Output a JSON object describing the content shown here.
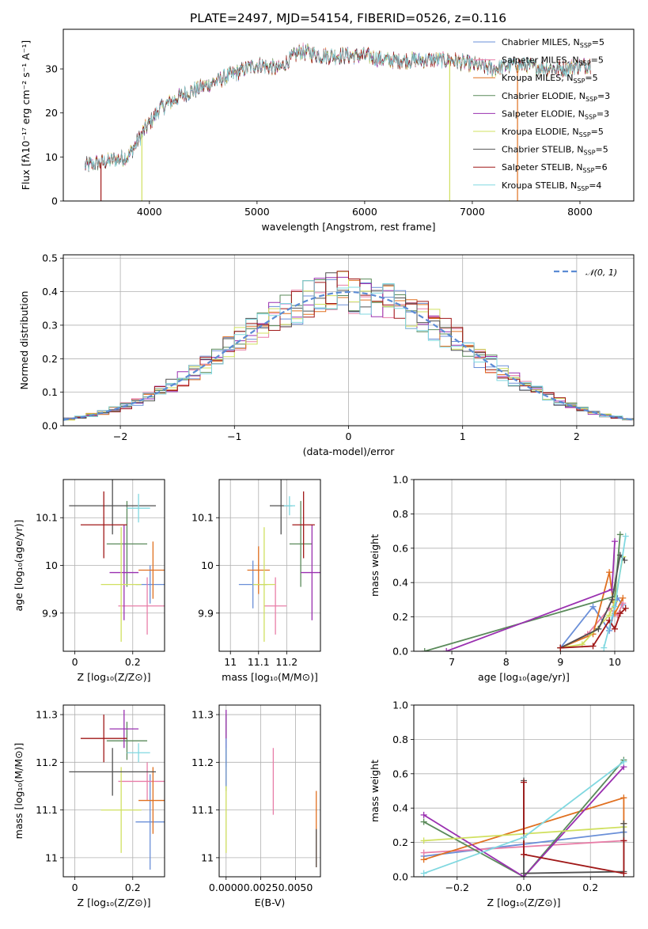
{
  "figure": {
    "title": "PLATE=2497, MJD=54154, FIBERID=0526, z=0.116"
  },
  "colors": {
    "Chabrier MILES": "#6a8fd8",
    "Salpeter MILES": "#e87ea8",
    "Kroupa MILES": "#e07020",
    "Chabrier ELODIE": "#5a8a5a",
    "Salpeter ELODIE": "#9a30b0",
    "Kroupa ELODIE": "#d0e060",
    "Chabrier STELIB": "#505050",
    "Salpeter STELIB": "#a01818",
    "Kroupa STELIB": "#80d8e0"
  },
  "chart_data": [
    {
      "id": "spectrum",
      "type": "line",
      "xlabel": "wavelength [Angstrom, rest frame]",
      "ylabel": "Flux [fλ10⁻¹⁷ erg cm⁻² s⁻¹ A⁻¹]",
      "xlim": [
        3200,
        8500
      ],
      "ylim": [
        0,
        39
      ],
      "xticks": [
        4000,
        5000,
        6000,
        7000,
        8000
      ],
      "yticks": [
        0,
        10,
        20,
        30
      ],
      "legend_position": "top-right",
      "legend": [
        {
          "label": "Chabrier MILES, N",
          "sub": "SSP",
          "suffix": "=5",
          "color": "#6a8fd8"
        },
        {
          "label": "Salpeter MILES, N",
          "sub": "SSP",
          "suffix": "=5",
          "color": "#e87ea8"
        },
        {
          "label": "Kroupa MILES, N",
          "sub": "SSP",
          "suffix": "=5",
          "color": "#e07020"
        },
        {
          "label": "Chabrier ELODIE, N",
          "sub": "SSP",
          "suffix": "=3",
          "color": "#5a8a5a"
        },
        {
          "label": "Salpeter ELODIE, N",
          "sub": "SSP",
          "suffix": "=3",
          "color": "#9a30b0"
        },
        {
          "label": "Kroupa ELODIE, N",
          "sub": "SSP",
          "suffix": "=5",
          "color": "#d0e060"
        },
        {
          "label": "Chabrier STELIB, N",
          "sub": "SSP",
          "suffix": "=5",
          "color": "#505050"
        },
        {
          "label": "Salpeter STELIB, N",
          "sub": "SSP",
          "suffix": "=6",
          "color": "#a01818"
        },
        {
          "label": "Kroupa STELIB, N",
          "sub": "SSP",
          "suffix": "=4",
          "color": "#80d8e0"
        }
      ],
      "continuum": {
        "x": [
          3400,
          3600,
          3800,
          3950,
          4100,
          4300,
          4500,
          4800,
          5000,
          5200,
          5400,
          5600,
          5800,
          6000,
          6200,
          6500,
          6800,
          7000,
          7200,
          7400,
          7800,
          8100
        ],
        "y": [
          8,
          9,
          10,
          16,
          21,
          24,
          26,
          29,
          31,
          30,
          34,
          33,
          33,
          33,
          32,
          32,
          32,
          31,
          30,
          31,
          30,
          31
        ]
      },
      "drops": [
        {
          "x": 3550,
          "y_to": 0,
          "color": "#a01818"
        },
        {
          "x": 3930,
          "y_to": 0,
          "color": "#d0e060"
        },
        {
          "x": 6790,
          "y_to": 0,
          "color": "#d0e060"
        },
        {
          "x": 7420,
          "y_to": 0,
          "color": "#e07020"
        }
      ]
    },
    {
      "id": "residual-hist",
      "type": "histogram",
      "xlabel": "(data-model)/error",
      "ylabel": "Normed distribution",
      "xlim": [
        -2.5,
        2.5
      ],
      "ylim": [
        0,
        0.51
      ],
      "xticks": [
        -2,
        -1,
        0,
        1,
        2
      ],
      "yticks": [
        0.0,
        0.1,
        0.2,
        0.3,
        0.4,
        0.5
      ],
      "bin_width": 0.1,
      "legend_position": "top-right",
      "gaussian": {
        "label": "𝒩(0, 1)",
        "mu": 0,
        "sigma": 1,
        "color": "#5b8bd4"
      }
    },
    {
      "id": "age-vs-Z",
      "type": "scatter",
      "xlabel": "Z [log₁₀(Z/Z⊙)]",
      "ylabel": "age  [log₁₀(age/yr)]",
      "xlim": [
        -0.04,
        0.31
      ],
      "ylim": [
        9.82,
        10.18
      ],
      "xticks": [
        0.0,
        0.2
      ],
      "yticks": [
        9.9,
        10.0,
        10.1
      ],
      "points": [
        {
          "series": "Chabrier MILES",
          "x": 0.26,
          "xerr": 0.05,
          "y": 9.96,
          "yerr": 0.04
        },
        {
          "series": "Salpeter MILES",
          "x": 0.25,
          "xerr": 0.1,
          "y": 9.915,
          "yerr": 0.06
        },
        {
          "series": "Kroupa MILES",
          "x": 0.27,
          "xerr": 0.05,
          "y": 9.99,
          "yerr": 0.06
        },
        {
          "series": "Chabrier ELODIE",
          "x": 0.18,
          "xerr": 0.07,
          "y": 10.045,
          "yerr": 0.09
        },
        {
          "series": "Salpeter ELODIE",
          "x": 0.17,
          "xerr": 0.05,
          "y": 9.985,
          "yerr": 0.1
        },
        {
          "series": "Kroupa ELODIE",
          "x": 0.16,
          "xerr": 0.07,
          "y": 9.96,
          "yerr": 0.12
        },
        {
          "series": "Chabrier STELIB",
          "x": 0.13,
          "xerr": 0.15,
          "y": 10.125,
          "yerr": 0.06
        },
        {
          "series": "Salpeter STELIB",
          "x": 0.1,
          "xerr": 0.08,
          "y": 10.085,
          "yerr": 0.07
        },
        {
          "series": "Kroupa STELIB",
          "x": 0.22,
          "xerr": 0.04,
          "y": 10.12,
          "yerr": 0.03
        }
      ]
    },
    {
      "id": "age-vs-mass",
      "type": "scatter",
      "xlabel": "mass [log₁₀(M/M⊙)]",
      "ylabel": "",
      "xlim": [
        10.96,
        11.32
      ],
      "ylim": [
        9.82,
        10.18
      ],
      "xticks": [
        11.0,
        11.1,
        11.2
      ],
      "yticks": [
        9.9,
        10.0,
        10.1
      ],
      "points": [
        {
          "series": "Chabrier MILES",
          "x": 11.08,
          "xerr": 0.05,
          "y": 9.96,
          "yerr": 0.05
        },
        {
          "series": "Salpeter MILES",
          "x": 11.16,
          "xerr": 0.04,
          "y": 9.915,
          "yerr": 0.06
        },
        {
          "series": "Kroupa MILES",
          "x": 11.1,
          "xerr": 0.04,
          "y": 9.99,
          "yerr": 0.05
        },
        {
          "series": "Chabrier ELODIE",
          "x": 11.25,
          "xerr": 0.04,
          "y": 10.045,
          "yerr": 0.09
        },
        {
          "series": "Salpeter ELODIE",
          "x": 11.29,
          "xerr": 0.04,
          "y": 9.985,
          "yerr": 0.1
        },
        {
          "series": "Kroupa ELODIE",
          "x": 11.12,
          "xerr": 0.04,
          "y": 9.96,
          "yerr": 0.12
        },
        {
          "series": "Chabrier STELIB",
          "x": 11.18,
          "xerr": 0.04,
          "y": 10.125,
          "yerr": 0.06
        },
        {
          "series": "Salpeter STELIB",
          "x": 11.26,
          "xerr": 0.04,
          "y": 10.085,
          "yerr": 0.07
        },
        {
          "series": "Kroupa STELIB",
          "x": 11.21,
          "xerr": 0.02,
          "y": 10.125,
          "yerr": 0.02
        }
      ]
    },
    {
      "id": "weight-vs-age",
      "type": "line",
      "xlabel": "age  [log₁₀(age/yr)]",
      "ylabel": "mass weight",
      "xlim": [
        6.3,
        10.35
      ],
      "ylim": [
        0,
        1
      ],
      "xticks": [
        7,
        8,
        9,
        10
      ],
      "yticks": [
        0.0,
        0.2,
        0.4,
        0.6,
        0.8,
        1.0
      ],
      "series": [
        {
          "name": "Chabrier MILES",
          "x": [
            9.0,
            9.6,
            9.9,
            10.05,
            10.15
          ],
          "y": [
            0.02,
            0.26,
            0.12,
            0.31,
            0.27
          ]
        },
        {
          "name": "Salpeter MILES",
          "x": [
            9.0,
            9.5,
            9.9,
            10.05,
            10.15
          ],
          "y": [
            0.02,
            0.1,
            0.25,
            0.21,
            0.28
          ]
        },
        {
          "name": "Kroupa MILES",
          "x": [
            9.0,
            9.6,
            9.9,
            10.0,
            10.15
          ],
          "y": [
            0.02,
            0.1,
            0.46,
            0.22,
            0.31
          ]
        },
        {
          "name": "Chabrier ELODIE",
          "x": [
            6.5,
            10.0,
            10.1
          ],
          "y": [
            0.0,
            0.32,
            0.68
          ]
        },
        {
          "name": "Salpeter ELODIE",
          "x": [
            6.9,
            9.95,
            10.0
          ],
          "y": [
            0.0,
            0.36,
            0.64
          ]
        },
        {
          "name": "Kroupa ELODIE",
          "x": [
            9.0,
            9.4,
            9.9,
            10.0,
            10.15
          ],
          "y": [
            0.02,
            0.04,
            0.21,
            0.29,
            0.55
          ]
        },
        {
          "name": "Chabrier STELIB",
          "x": [
            9.0,
            9.7,
            9.95,
            10.1,
            10.18
          ],
          "y": [
            0.02,
            0.13,
            0.3,
            0.56,
            0.53
          ]
        },
        {
          "name": "Salpeter STELIB",
          "x": [
            9.0,
            9.6,
            9.9,
            10.0,
            10.1,
            10.2
          ],
          "y": [
            0.02,
            0.03,
            0.18,
            0.13,
            0.22,
            0.25
          ]
        },
        {
          "name": "Kroupa STELIB",
          "x": [
            9.8,
            10.0,
            10.2
          ],
          "y": [
            0.02,
            0.26,
            0.67
          ]
        }
      ]
    },
    {
      "id": "mass-vs-Z",
      "type": "scatter",
      "xlabel": "Z [log₁₀(Z/Z⊙)]",
      "ylabel": "mass [log₁₀(M/M⊙)]",
      "xlim": [
        -0.04,
        0.31
      ],
      "ylim": [
        10.96,
        11.32
      ],
      "xticks": [
        0.0,
        0.2
      ],
      "yticks": [
        11.0,
        11.1,
        11.2,
        11.3
      ],
      "points": [
        {
          "series": "Chabrier MILES",
          "x": 0.26,
          "xerr": 0.05,
          "y": 11.075,
          "yerr": 0.1
        },
        {
          "series": "Salpeter MILES",
          "x": 0.25,
          "xerr": 0.1,
          "y": 11.16,
          "yerr": 0.04
        },
        {
          "series": "Kroupa MILES",
          "x": 0.27,
          "xerr": 0.05,
          "y": 11.12,
          "yerr": 0.07
        },
        {
          "series": "Chabrier ELODIE",
          "x": 0.18,
          "xerr": 0.07,
          "y": 11.245,
          "yerr": 0.04
        },
        {
          "series": "Salpeter ELODIE",
          "x": 0.17,
          "xerr": 0.05,
          "y": 11.27,
          "yerr": 0.04
        },
        {
          "series": "Kroupa ELODIE",
          "x": 0.16,
          "xerr": 0.07,
          "y": 11.1,
          "yerr": 0.09
        },
        {
          "series": "Chabrier STELIB",
          "x": 0.13,
          "xerr": 0.15,
          "y": 11.18,
          "yerr": 0.05
        },
        {
          "series": "Salpeter STELIB",
          "x": 0.1,
          "xerr": 0.08,
          "y": 11.25,
          "yerr": 0.05
        },
        {
          "series": "Kroupa STELIB",
          "x": 0.22,
          "xerr": 0.04,
          "y": 11.22,
          "yerr": 0.02
        }
      ]
    },
    {
      "id": "mass-vs-ebv",
      "type": "scatter",
      "xlabel": "E(B-V)",
      "ylabel": "",
      "xlim": [
        -0.0005,
        0.0068
      ],
      "ylim": [
        10.96,
        11.32
      ],
      "xticks": [
        0.0,
        0.0025,
        0.005
      ],
      "xticklabels": [
        "0.0000",
        "0.0025",
        "0.0050"
      ],
      "yticks": [
        11.0,
        11.1,
        11.2,
        11.3
      ],
      "points": [
        {
          "series": "Chabrier ELODIE",
          "x": 0.0,
          "y": 11.22,
          "yerr": 0.08
        },
        {
          "series": "Salpeter ELODIE",
          "x": 0.0,
          "y": 11.27,
          "yerr": 0.04
        },
        {
          "series": "Kroupa ELODIE",
          "x": 0.0,
          "y": 11.1,
          "yerr": 0.09
        },
        {
          "series": "Chabrier MILES",
          "x": 0.0,
          "y": 11.2,
          "yerr": 0.05
        },
        {
          "series": "Salpeter MILES",
          "x": 0.0034,
          "y": 11.16,
          "yerr": 0.07
        },
        {
          "series": "Kroupa MILES",
          "x": 0.0065,
          "y": 11.06,
          "yerr": 0.08
        },
        {
          "series": "Chabrier STELIB",
          "x": 0.0065,
          "y": 11.02,
          "yerr": 0.04
        }
      ]
    },
    {
      "id": "weight-vs-Z",
      "type": "line",
      "xlabel": "Z [log₁₀(Z/Z⊙)]",
      "ylabel": "mass weight",
      "xlim": [
        -0.33,
        0.33
      ],
      "ylim": [
        0,
        1
      ],
      "xticks": [
        -0.2,
        0.0,
        0.2
      ],
      "xticklabels": [
        "−0.2",
        "0.0",
        "0.2"
      ],
      "yticks": [
        0.0,
        0.2,
        0.4,
        0.6,
        0.8,
        1.0
      ],
      "series": [
        {
          "name": "Chabrier MILES",
          "x": [
            -0.3,
            0.3,
            0.3
          ],
          "y": [
            0.12,
            0.26,
            0.26
          ]
        },
        {
          "name": "Salpeter MILES",
          "x": [
            -0.3,
            0.3,
            0.3
          ],
          "y": [
            0.14,
            0.21,
            0.21
          ]
        },
        {
          "name": "Kroupa MILES",
          "x": [
            -0.3,
            0.3,
            0.3
          ],
          "y": [
            0.1,
            0.46,
            0.31
          ]
        },
        {
          "name": "Chabrier ELODIE",
          "x": [
            -0.3,
            0.0,
            0.3
          ],
          "y": [
            0.32,
            0.0,
            0.68
          ]
        },
        {
          "name": "Salpeter ELODIE",
          "x": [
            -0.3,
            0.0,
            0.3
          ],
          "y": [
            0.36,
            0.0,
            0.64
          ]
        },
        {
          "name": "Kroupa ELODIE",
          "x": [
            -0.3,
            0.3,
            0.3
          ],
          "y": [
            0.21,
            0.29,
            0.29
          ]
        },
        {
          "name": "Chabrier STELIB",
          "x": [
            0.0,
            0.0,
            0.3,
            0.3
          ],
          "y": [
            0.56,
            0.02,
            0.03,
            0.31
          ]
        },
        {
          "name": "Salpeter STELIB",
          "x": [
            0.0,
            0.0,
            0.3,
            0.3
          ],
          "y": [
            0.55,
            0.13,
            0.02,
            0.21
          ]
        },
        {
          "name": "Kroupa STELIB",
          "x": [
            -0.3,
            0.0,
            0.3
          ],
          "y": [
            0.02,
            0.23,
            0.67
          ]
        }
      ]
    }
  ]
}
